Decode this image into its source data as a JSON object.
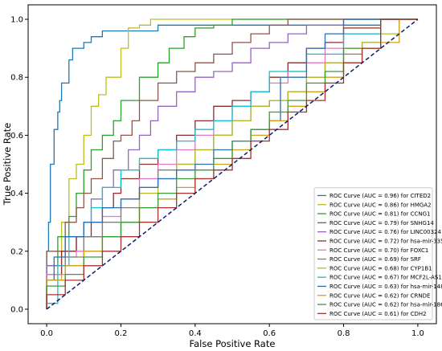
{
  "chart_data": {
    "type": "line",
    "title": "",
    "xlabel": "False Positive Rate",
    "ylabel": "True Positive Rate",
    "xlim": [
      -0.05,
      1.05
    ],
    "ylim": [
      -0.05,
      1.05
    ],
    "xticks": [
      "0.0",
      "0.2",
      "0.4",
      "0.6",
      "0.8",
      "1.0"
    ],
    "yticks": [
      "0.0",
      "0.2",
      "0.4",
      "0.6",
      "0.8",
      "1.0"
    ],
    "grid": false,
    "legend_position": "bottom-right",
    "diagonal": {
      "x": [
        0,
        1
      ],
      "y": [
        0,
        1
      ],
      "color": "#0b1f6b",
      "style": "dashed"
    },
    "series": [
      {
        "name": "ROC Curve (AUC = 0.96) for CITED2",
        "color": "#1f77b4",
        "x": [
          0,
          0.005,
          0.01,
          0.01,
          0.02,
          0.02,
          0.03,
          0.035,
          0.04,
          0.06,
          0.06,
          0.07,
          0.08,
          0.1,
          0.12,
          0.15,
          0.2,
          0.25,
          0.3,
          0.35,
          0.4,
          0.5,
          0.6,
          0.7,
          0.8,
          0.9,
          1.0
        ],
        "y": [
          0,
          0.2,
          0.3,
          0.4,
          0.5,
          0.55,
          0.62,
          0.68,
          0.72,
          0.78,
          0.82,
          0.86,
          0.9,
          0.9,
          0.92,
          0.94,
          0.96,
          0.96,
          0.96,
          0.98,
          0.98,
          0.98,
          0.98,
          0.98,
          0.98,
          0.98,
          1.0
        ]
      },
      {
        "name": "ROC Curve (AUC = 0.86) for HMGA2",
        "color": "#bcbd22",
        "x": [
          0,
          0.04,
          0.06,
          0.08,
          0.1,
          0.12,
          0.14,
          0.16,
          0.2,
          0.22,
          0.25,
          0.28,
          0.3,
          0.35,
          0.4,
          0.5,
          0.6,
          0.7,
          0.8,
          1.0
        ],
        "y": [
          0,
          0.1,
          0.3,
          0.45,
          0.5,
          0.6,
          0.7,
          0.74,
          0.8,
          0.9,
          0.97,
          0.98,
          1.0,
          1.0,
          1.0,
          1.0,
          1.0,
          1.0,
          1.0,
          1.0
        ]
      },
      {
        "name": "ROC Curve (AUC = 0.81) for CCNG1",
        "color": "#2ca02c",
        "x": [
          0,
          0.03,
          0.06,
          0.08,
          0.1,
          0.12,
          0.15,
          0.18,
          0.2,
          0.25,
          0.3,
          0.33,
          0.37,
          0.4,
          0.45,
          0.5,
          0.55,
          0.6,
          0.7,
          0.8,
          1.0
        ],
        "y": [
          0,
          0.15,
          0.25,
          0.32,
          0.4,
          0.48,
          0.55,
          0.6,
          0.65,
          0.72,
          0.8,
          0.85,
          0.9,
          0.94,
          0.97,
          0.98,
          1.0,
          1.0,
          1.0,
          1.0,
          1.0
        ]
      },
      {
        "name": "ROC Curve (AUC = 0.79) for SNHG14",
        "color": "#8c564b",
        "x": [
          0,
          0.05,
          0.08,
          0.1,
          0.12,
          0.15,
          0.18,
          0.2,
          0.23,
          0.25,
          0.3,
          0.35,
          0.4,
          0.45,
          0.5,
          0.55,
          0.6,
          0.65,
          0.7,
          0.8,
          0.9,
          1.0
        ],
        "y": [
          0,
          0.2,
          0.3,
          0.35,
          0.4,
          0.45,
          0.52,
          0.58,
          0.6,
          0.65,
          0.72,
          0.78,
          0.82,
          0.85,
          0.88,
          0.92,
          0.95,
          0.98,
          1.0,
          1.0,
          1.0,
          1.0
        ]
      },
      {
        "name": "ROC Curve (AUC = 0.76) for LINC00324",
        "color": "#9467bd",
        "x": [
          0,
          0.05,
          0.08,
          0.1,
          0.12,
          0.15,
          0.18,
          0.22,
          0.25,
          0.28,
          0.3,
          0.35,
          0.4,
          0.45,
          0.5,
          0.55,
          0.6,
          0.65,
          0.7,
          0.8,
          0.9,
          1.0
        ],
        "y": [
          0,
          0.15,
          0.2,
          0.25,
          0.3,
          0.38,
          0.42,
          0.48,
          0.55,
          0.6,
          0.65,
          0.7,
          0.75,
          0.8,
          0.82,
          0.85,
          0.9,
          0.92,
          0.95,
          0.98,
          1.0,
          1.0
        ]
      },
      {
        "name": "ROC Curve (AUC = 0.72) for hsa-mir-335",
        "color": "#8c2d2d",
        "x": [
          0,
          0.04,
          0.08,
          0.12,
          0.15,
          0.18,
          0.2,
          0.25,
          0.3,
          0.35,
          0.4,
          0.45,
          0.5,
          0.55,
          0.6,
          0.65,
          0.7,
          0.75,
          0.8,
          0.9,
          1.0
        ],
        "y": [
          0,
          0.12,
          0.2,
          0.25,
          0.3,
          0.35,
          0.4,
          0.45,
          0.5,
          0.55,
          0.6,
          0.65,
          0.7,
          0.72,
          0.75,
          0.8,
          0.85,
          0.9,
          0.92,
          0.97,
          1.0
        ]
      },
      {
        "name": "ROC Curve (AUC = 0.70) for FOXC1",
        "color": "#e377c2",
        "x": [
          0,
          0.05,
          0.08,
          0.1,
          0.15,
          0.2,
          0.25,
          0.3,
          0.35,
          0.4,
          0.45,
          0.5,
          0.55,
          0.6,
          0.65,
          0.7,
          0.75,
          0.8,
          0.9,
          1.0
        ],
        "y": [
          0,
          0.12,
          0.18,
          0.2,
          0.25,
          0.32,
          0.38,
          0.45,
          0.5,
          0.55,
          0.6,
          0.65,
          0.7,
          0.75,
          0.78,
          0.82,
          0.85,
          0.9,
          0.95,
          1.0
        ]
      },
      {
        "name": "ROC Curve (AUC = 0.69) for SRF",
        "color": "#7f7f7f",
        "x": [
          0,
          0.05,
          0.1,
          0.15,
          0.2,
          0.25,
          0.3,
          0.35,
          0.4,
          0.45,
          0.5,
          0.55,
          0.6,
          0.65,
          0.7,
          0.75,
          0.8,
          0.85,
          0.9,
          1.0
        ],
        "y": [
          0,
          0.1,
          0.18,
          0.25,
          0.3,
          0.35,
          0.42,
          0.48,
          0.5,
          0.55,
          0.6,
          0.65,
          0.7,
          0.72,
          0.75,
          0.8,
          0.85,
          0.88,
          0.92,
          1.0
        ]
      },
      {
        "name": "ROC Curve (AUC = 0.68) for CYP1B1",
        "color": "#b5b82a",
        "x": [
          0,
          0.05,
          0.1,
          0.15,
          0.2,
          0.25,
          0.3,
          0.35,
          0.4,
          0.45,
          0.5,
          0.55,
          0.6,
          0.65,
          0.7,
          0.75,
          0.8,
          0.85,
          0.9,
          0.95,
          1.0
        ],
        "y": [
          0,
          0.1,
          0.15,
          0.2,
          0.25,
          0.3,
          0.4,
          0.45,
          0.5,
          0.55,
          0.6,
          0.65,
          0.7,
          0.72,
          0.75,
          0.8,
          0.85,
          0.9,
          0.92,
          0.95,
          1.0
        ]
      },
      {
        "name": "ROC Curve (AUC = 0.67) for MCF2L-AS1",
        "color": "#17becf",
        "x": [
          0,
          0.03,
          0.06,
          0.1,
          0.12,
          0.15,
          0.2,
          0.25,
          0.3,
          0.35,
          0.4,
          0.45,
          0.5,
          0.55,
          0.6,
          0.7,
          0.8,
          0.9,
          1.0
        ],
        "y": [
          0,
          0.02,
          0.15,
          0.25,
          0.3,
          0.35,
          0.42,
          0.48,
          0.52,
          0.55,
          0.58,
          0.62,
          0.65,
          0.7,
          0.75,
          0.82,
          0.88,
          0.95,
          1.0
        ]
      },
      {
        "name": "ROC Curve (AUC = 0.63) for hsa-mir-148a",
        "color": "#2a6fb0",
        "x": [
          0,
          0.02,
          0.05,
          0.1,
          0.15,
          0.2,
          0.25,
          0.3,
          0.35,
          0.4,
          0.45,
          0.5,
          0.55,
          0.6,
          0.63,
          0.7,
          0.75,
          0.8,
          0.9,
          1.0
        ],
        "y": [
          0,
          0.1,
          0.18,
          0.25,
          0.3,
          0.35,
          0.38,
          0.42,
          0.45,
          0.48,
          0.5,
          0.55,
          0.58,
          0.62,
          0.65,
          0.8,
          0.9,
          0.95,
          1.0,
          1.0
        ]
      },
      {
        "name": "ROC Curve (AUC = 0.62) for CRNDE",
        "color": "#d4a017",
        "x": [
          0,
          0.05,
          0.1,
          0.15,
          0.2,
          0.25,
          0.3,
          0.35,
          0.4,
          0.45,
          0.5,
          0.55,
          0.6,
          0.65,
          0.7,
          0.75,
          0.8,
          0.85,
          0.9,
          0.95,
          1.0
        ],
        "y": [
          0,
          0.1,
          0.15,
          0.2,
          0.25,
          0.3,
          0.35,
          0.38,
          0.42,
          0.45,
          0.5,
          0.55,
          0.6,
          0.65,
          0.7,
          0.75,
          0.8,
          0.85,
          0.9,
          0.92,
          1.0
        ]
      },
      {
        "name": "ROC Curve (AUC = 0.62) for hsa-mir-186",
        "color": "#3a9a3a",
        "x": [
          0,
          0.05,
          0.1,
          0.15,
          0.2,
          0.25,
          0.3,
          0.35,
          0.4,
          0.45,
          0.5,
          0.55,
          0.6,
          0.65,
          0.7,
          0.75,
          0.8,
          0.9,
          1.0
        ],
        "y": [
          0,
          0.08,
          0.12,
          0.18,
          0.25,
          0.3,
          0.35,
          0.4,
          0.45,
          0.48,
          0.52,
          0.58,
          0.62,
          0.68,
          0.72,
          0.78,
          0.82,
          0.9,
          1.0
        ]
      },
      {
        "name": "ROC Curve (AUC = 0.61) for CDH2",
        "color": "#a83232",
        "x": [
          0,
          0.05,
          0.1,
          0.15,
          0.2,
          0.25,
          0.3,
          0.35,
          0.4,
          0.45,
          0.5,
          0.55,
          0.6,
          0.65,
          0.7,
          0.75,
          0.8,
          0.85,
          0.9,
          1.0
        ],
        "y": [
          0,
          0.05,
          0.1,
          0.15,
          0.2,
          0.25,
          0.3,
          0.35,
          0.4,
          0.45,
          0.48,
          0.52,
          0.58,
          0.62,
          0.68,
          0.72,
          0.78,
          0.85,
          0.9,
          1.0
        ]
      }
    ]
  }
}
